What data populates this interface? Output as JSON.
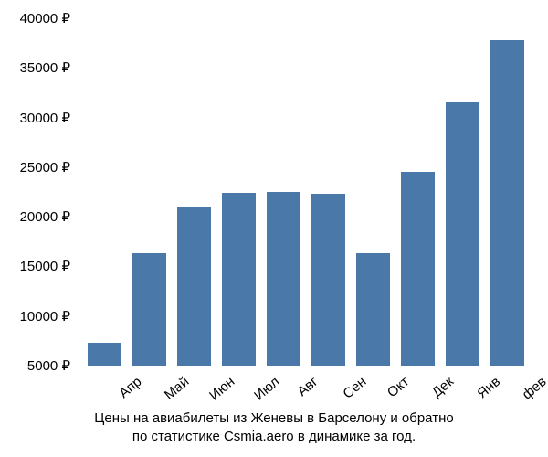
{
  "chart": {
    "type": "bar",
    "categories": [
      "Апр",
      "Май",
      "Июн",
      "Июл",
      "Авг",
      "Сен",
      "Окт",
      "Дек",
      "Янв",
      "фев"
    ],
    "values": [
      7300,
      16300,
      21000,
      22400,
      22500,
      22300,
      16300,
      24500,
      31500,
      37800
    ],
    "bar_color": "#4a78a8",
    "background_color": "#ffffff",
    "ylim": [
      5000,
      40000
    ],
    "ytick_step": 5000,
    "ytick_labels": [
      "5000 ₽",
      "10000 ₽",
      "15000 ₽",
      "20000 ₽",
      "25000 ₽",
      "30000 ₽",
      "35000 ₽",
      "40000 ₽"
    ],
    "bar_width_ratio": 0.74,
    "label_fontsize": 15,
    "x_label_rotation": -40
  },
  "caption": {
    "line1": "Цены на авиабилеты из Женевы в Барселону и обратно",
    "line2": "по статистике Csmia.aero в динамике за год."
  }
}
